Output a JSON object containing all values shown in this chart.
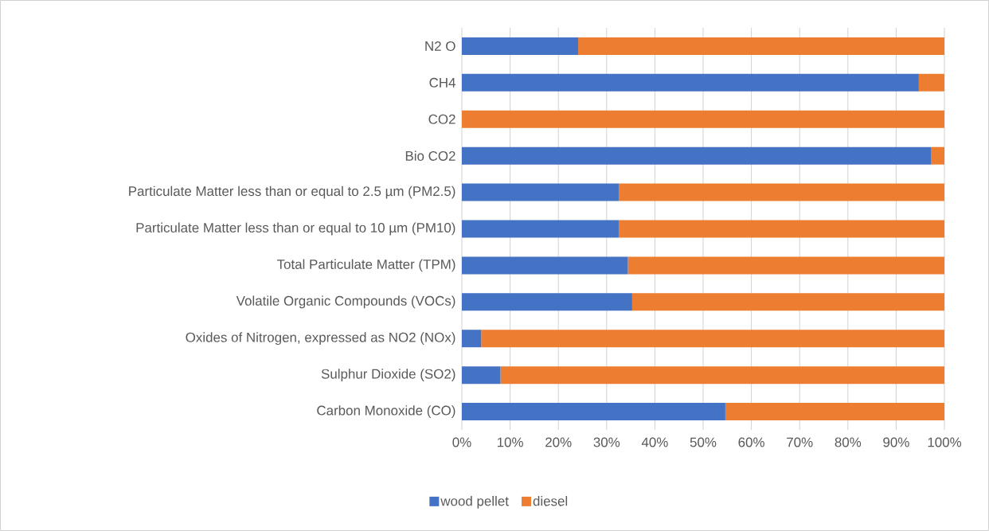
{
  "chart_data": {
    "type": "bar",
    "orientation": "horizontal",
    "stacked": true,
    "categories": [
      "N2 O",
      "CH4",
      "CO2",
      "Bio CO2",
      "Particulate Matter less than or equal to 2.5 µm (PM2.5)",
      "Particulate Matter less than or equal to 10 µm (PM10)",
      "Total Particulate Matter (TPM)",
      "Volatile Organic Compounds (VOCs)",
      "Oxides of Nitrogen, expressed as NO2 (NOx)",
      "Sulphur Dioxide (SO2)",
      "Carbon Monoxide (CO)"
    ],
    "series": [
      {
        "name": "wood pellet",
        "color": "#4472c4",
        "values": [
          24.1,
          94.7,
          0,
          97.2,
          32.5,
          32.5,
          34.4,
          35.3,
          4.0,
          8.0,
          54.6
        ]
      },
      {
        "name": "diesel",
        "color": "#ed7d31",
        "values": [
          75.9,
          5.3,
          100,
          2.8,
          67.5,
          67.5,
          65.6,
          64.7,
          96.0,
          92.0,
          45.4
        ]
      }
    ],
    "xlim": [
      0,
      100
    ],
    "xticks": [
      {
        "value": 0,
        "label": "0%"
      },
      {
        "value": 10,
        "label": "10%"
      },
      {
        "value": 20,
        "label": "20%"
      },
      {
        "value": 30,
        "label": "30%"
      },
      {
        "value": 40,
        "label": "40%"
      },
      {
        "value": 50,
        "label": "50%"
      },
      {
        "value": 60,
        "label": "60%"
      },
      {
        "value": 70,
        "label": "70%"
      },
      {
        "value": 80,
        "label": "80%"
      },
      {
        "value": 90,
        "label": "90%"
      },
      {
        "value": 100,
        "label": "100%"
      }
    ],
    "grid": "x",
    "legend": "bottom"
  }
}
